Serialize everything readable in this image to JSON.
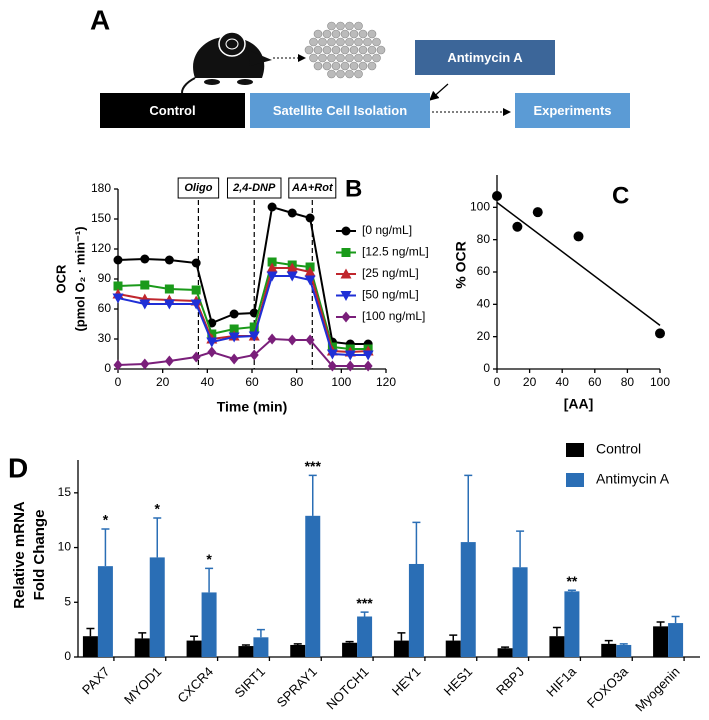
{
  "diagram": {
    "label": "A",
    "boxes": [
      {
        "text": "Control",
        "color": "#000000"
      },
      {
        "text": "Satellite Cell Isolation",
        "color": "#5b9bd5"
      },
      {
        "text": "Antimycin A",
        "color": "#3c6699"
      },
      {
        "text": "Experiments",
        "color": "#5b9bd5"
      }
    ]
  },
  "chart_data": [
    {
      "type": "line",
      "panel_label": "B",
      "xlabel": "Time (min)",
      "ylabel": [
        "OCR",
        "(pmol O₂ · min⁻¹)"
      ],
      "x": [
        0,
        12,
        23,
        35,
        42,
        52,
        61,
        69,
        78,
        86,
        96,
        104,
        112
      ],
      "xlim": [
        0,
        120
      ],
      "xticks": [
        0,
        20,
        40,
        60,
        80,
        100,
        120
      ],
      "ylim": [
        0,
        180
      ],
      "yticks": [
        0,
        30,
        60,
        90,
        120,
        150,
        180
      ],
      "annotations": [
        {
          "x": 36,
          "label": "Oligo"
        },
        {
          "x": 61,
          "label": "2,4-DNP"
        },
        {
          "x": 87,
          "label": "AA+Rot"
        }
      ],
      "legend": "upper right",
      "series": [
        {
          "name": "[0 ng/mL]",
          "color": "#000000",
          "marker": "circle",
          "values": [
            109,
            110,
            109,
            106,
            46,
            55,
            56,
            162,
            156,
            151,
            27,
            25,
            25
          ]
        },
        {
          "name": "[12.5 ng/mL]",
          "color": "#1a9a1a",
          "marker": "square",
          "values": [
            83,
            84,
            80,
            79,
            35,
            40,
            42,
            107,
            104,
            102,
            22,
            20,
            20
          ]
        },
        {
          "name": "[25 ng/mL]",
          "color": "#c0262d",
          "marker": "triangle",
          "values": [
            75,
            70,
            69,
            68,
            30,
            33,
            33,
            101,
            101,
            97,
            18,
            17,
            18
          ]
        },
        {
          "name": "[50 ng/mL]",
          "color": "#1f2fd6",
          "marker": "triangle-down",
          "values": [
            71,
            65,
            65,
            65,
            27,
            32,
            33,
            93,
            93,
            89,
            15,
            14,
            14
          ]
        },
        {
          "name": "[100 ng/mL]",
          "color": "#7a1f7a",
          "marker": "diamond",
          "values": [
            4,
            5,
            8,
            12,
            17,
            10,
            14,
            30,
            29,
            29,
            3,
            3,
            3
          ]
        }
      ]
    },
    {
      "type": "scatter",
      "panel_label": "C",
      "xlabel": "[AA]",
      "ylabel": "% OCR",
      "x": [
        0,
        12.5,
        25,
        50,
        100
      ],
      "values": [
        107,
        88,
        97,
        82,
        22
      ],
      "color": "#000000",
      "fit": {
        "x": [
          0,
          100
        ],
        "values": [
          103,
          27
        ]
      },
      "xlim": [
        0,
        100
      ],
      "xticks": [
        0,
        20,
        40,
        60,
        80,
        100
      ],
      "ylim": [
        0,
        120
      ],
      "yticks": [
        0,
        20,
        40,
        60,
        80,
        100
      ]
    },
    {
      "type": "bar",
      "panel_label": "D",
      "ylabel": [
        "Relative mRNA",
        "Fold Change"
      ],
      "categories": [
        "PAX7",
        "MYOD1",
        "CXCR4",
        "SIRT1",
        "SPRAY1",
        "NOTCH1",
        "HEY1",
        "HES1",
        "RBPJ",
        "HIF1a",
        "FOXO3a",
        "Myogenin"
      ],
      "ylim": [
        0,
        18
      ],
      "yticks": [
        0,
        5,
        10,
        15
      ],
      "legend": "upper right",
      "series": [
        {
          "name": "Control",
          "color": "#000000",
          "values": [
            1.9,
            1.7,
            1.5,
            1.0,
            1.1,
            1.3,
            1.5,
            1.5,
            0.8,
            1.9,
            1.2,
            2.8
          ],
          "errors": [
            0.7,
            0.5,
            0.4,
            0.1,
            0.1,
            0.1,
            0.7,
            0.5,
            0.1,
            0.8,
            0.3,
            0.4
          ]
        },
        {
          "name": "Antimycin A",
          "color": "#2a6eb5",
          "values": [
            8.3,
            9.1,
            5.9,
            1.8,
            12.9,
            3.7,
            8.5,
            10.5,
            8.2,
            6.0,
            1.1,
            3.1
          ],
          "errors": [
            3.4,
            3.6,
            2.2,
            0.7,
            3.7,
            0.4,
            3.8,
            6.1,
            3.3,
            0.1,
            0.1,
            0.6
          ],
          "significance": [
            "*",
            "*",
            "*",
            null,
            "***",
            "***",
            null,
            null,
            null,
            "**",
            null,
            null
          ]
        }
      ]
    }
  ]
}
